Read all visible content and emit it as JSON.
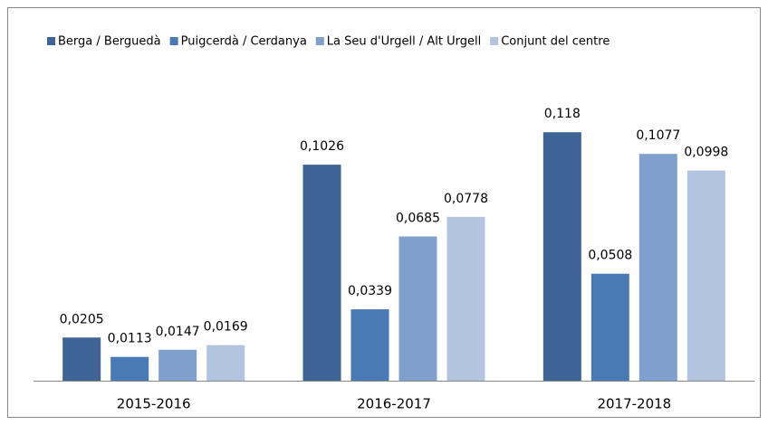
{
  "chart_data": {
    "type": "bar",
    "categories": [
      "2015-2016",
      "2016-2017",
      "2017-2018"
    ],
    "series": [
      {
        "name": "Berga / Berguedà",
        "color": "#3d6494",
        "values": [
          0.0205,
          0.1026,
          0.118
        ],
        "value_labels": [
          "0,0205",
          "0,1026",
          "0,118"
        ]
      },
      {
        "name": "Puigcerdà / Cerdanya",
        "color": "#4a7ab5",
        "values": [
          0.0113,
          0.0339,
          0.0508
        ],
        "value_labels": [
          "0,0113",
          "0,0339",
          "0,0508"
        ]
      },
      {
        "name": "La Seu d'Urgell / Alt Urgell",
        "color": "#7f9fcc",
        "values": [
          0.0147,
          0.0685,
          0.1077
        ],
        "value_labels": [
          "0,0147",
          "0,0685",
          "0,1077"
        ]
      },
      {
        "name": "Conjunt del centre",
        "color": "#b3c4e0",
        "values": [
          0.0169,
          0.0778,
          0.0998
        ],
        "value_labels": [
          "0,0169",
          "0,0778",
          "0,0998"
        ]
      }
    ],
    "ylim": [
      0,
      0.14
    ]
  }
}
